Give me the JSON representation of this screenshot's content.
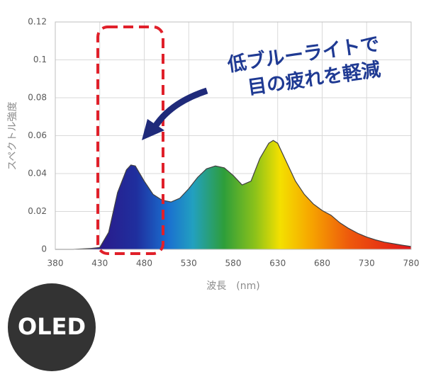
{
  "chart_data": {
    "type": "area",
    "x": [
      380,
      400,
      420,
      430,
      440,
      450,
      460,
      465,
      470,
      480,
      490,
      500,
      510,
      520,
      530,
      540,
      550,
      560,
      570,
      580,
      590,
      600,
      610,
      620,
      625,
      630,
      640,
      650,
      660,
      670,
      680,
      690,
      700,
      710,
      720,
      730,
      740,
      750,
      760,
      770,
      780
    ],
    "values": [
      0,
      0,
      0.0005,
      0.001,
      0.009,
      0.03,
      0.042,
      0.0445,
      0.044,
      0.036,
      0.029,
      0.026,
      0.025,
      0.027,
      0.032,
      0.038,
      0.0425,
      0.044,
      0.043,
      0.039,
      0.034,
      0.036,
      0.048,
      0.056,
      0.0575,
      0.056,
      0.046,
      0.036,
      0.029,
      0.024,
      0.0205,
      0.018,
      0.014,
      0.011,
      0.0085,
      0.0065,
      0.005,
      0.0038,
      0.003,
      0.0022,
      0.0015
    ],
    "xlim": [
      380,
      780
    ],
    "xticks": [
      380,
      430,
      480,
      530,
      580,
      630,
      680,
      730,
      780
    ],
    "ylim": [
      0,
      0.12
    ],
    "yticks": [
      0,
      0.02,
      0.04,
      0.06,
      0.08,
      0.1,
      0.12
    ],
    "grid": true,
    "line_color": "#404040",
    "x_label": "波長　(nm)",
    "y_label": "スペクトル強度",
    "annotation": [
      "低ブルーライトで",
      "目の疲れを軽減"
    ]
  },
  "badge": "OLED"
}
